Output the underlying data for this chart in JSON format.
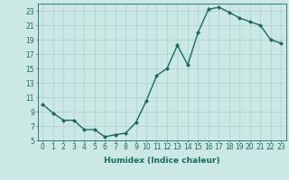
{
  "x": [
    0,
    1,
    2,
    3,
    4,
    5,
    6,
    7,
    8,
    9,
    10,
    11,
    12,
    13,
    14,
    15,
    16,
    17,
    18,
    19,
    20,
    21,
    22,
    23
  ],
  "y": [
    10.0,
    8.8,
    7.8,
    7.8,
    6.5,
    6.5,
    5.5,
    5.8,
    6.0,
    7.5,
    10.5,
    14.0,
    15.0,
    18.2,
    15.5,
    20.0,
    23.2,
    23.5,
    22.8,
    22.0,
    21.5,
    21.0,
    19.0,
    18.5
  ],
  "line_color": "#1a6b5a",
  "marker": "D",
  "marker_size": 2,
  "bg_color": "#cce8e4",
  "grid_color": "#aad0cc",
  "xlabel": "Humidex (Indice chaleur)",
  "ylim": [
    5,
    24
  ],
  "xlim": [
    -0.5,
    23.5
  ],
  "yticks": [
    5,
    7,
    9,
    11,
    13,
    15,
    17,
    19,
    21,
    23
  ],
  "xticks": [
    0,
    1,
    2,
    3,
    4,
    5,
    6,
    7,
    8,
    9,
    10,
    11,
    12,
    13,
    14,
    15,
    16,
    17,
    18,
    19,
    20,
    21,
    22,
    23
  ],
  "xlabel_fontsize": 6.5,
  "tick_fontsize": 5.5,
  "line_width": 1.0
}
